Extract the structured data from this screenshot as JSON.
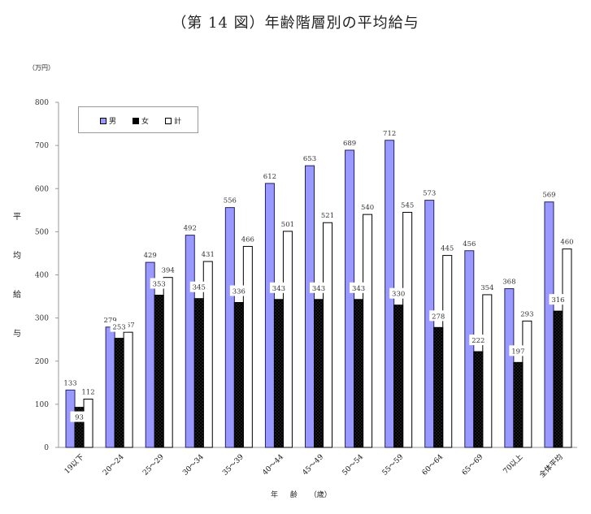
{
  "title": "（第 14 図）年齢階層別の平均給与",
  "unit_label": "（万円）",
  "y_axis_label_chars": [
    "平",
    "均",
    "給",
    "与"
  ],
  "x_axis_title": "年 齢 （歳）",
  "legend": [
    {
      "name": "男",
      "color": "#9999ff"
    },
    {
      "name": "女",
      "color": "#000000"
    },
    {
      "name": "計",
      "color": "#ffffff"
    }
  ],
  "chart_data": {
    "type": "bar",
    "title": "（第 14 図）年齢階層別の平均給与",
    "xlabel": "年 齢 （歳）",
    "ylabel": "平均給与（万円）",
    "ylim": [
      0,
      800
    ],
    "yticks": [
      0,
      100,
      200,
      300,
      400,
      500,
      600,
      700,
      800
    ],
    "grid": false,
    "legend_position": "top-left inside",
    "categories": [
      "19以下",
      "20～24",
      "25～29",
      "30～34",
      "35～39",
      "40～44",
      "45～49",
      "50～54",
      "55～59",
      "60～64",
      "65～69",
      "70以上",
      "全体平均"
    ],
    "series": [
      {
        "name": "男",
        "color": "#9999ff",
        "values": [
          133,
          279,
          429,
          492,
          556,
          612,
          653,
          689,
          712,
          573,
          456,
          368,
          569
        ]
      },
      {
        "name": "女",
        "color": "#000000",
        "values": [
          93,
          253,
          353,
          345,
          336,
          343,
          343,
          343,
          330,
          278,
          222,
          197,
          316
        ]
      },
      {
        "name": "計",
        "color": "#ffffff",
        "values": [
          112,
          267,
          394,
          431,
          466,
          501,
          521,
          540,
          545,
          445,
          354,
          293,
          460
        ]
      }
    ]
  }
}
